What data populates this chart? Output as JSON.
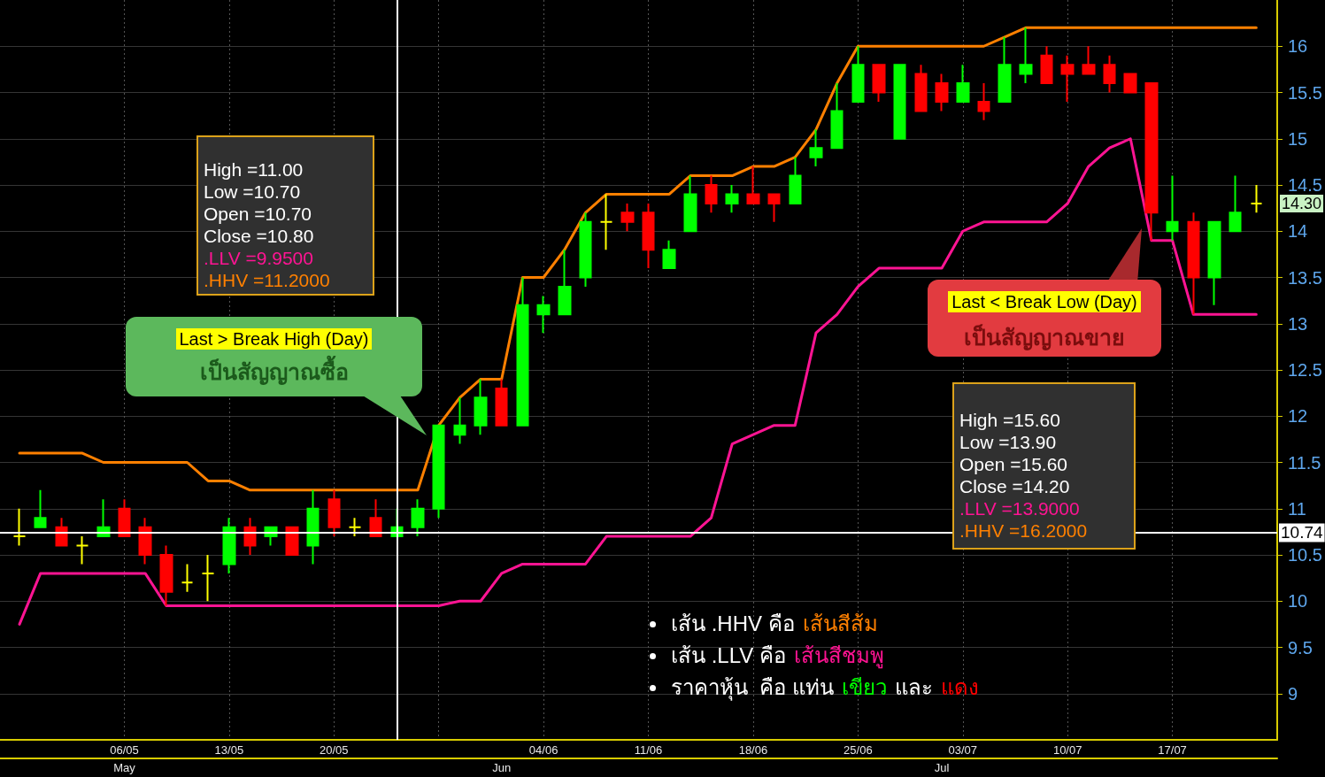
{
  "chart_data": {
    "type": "candlestick",
    "categories": [
      null,
      null,
      null,
      null,
      null,
      "06/05",
      null,
      null,
      null,
      null,
      "13/05",
      null,
      null,
      null,
      null,
      "20/05",
      null,
      null,
      null,
      null,
      null,
      null,
      null,
      null,
      null,
      "04/06",
      null,
      null,
      null,
      null,
      "11/06",
      null,
      null,
      null,
      null,
      "18/06",
      null,
      null,
      null,
      null,
      "25/06",
      null,
      null,
      null,
      null,
      "03/07",
      null,
      null,
      null,
      null,
      "10/07",
      null,
      null,
      null,
      null,
      "17/07",
      null,
      null,
      null,
      null
    ],
    "ylim": [
      8.5,
      16.5
    ],
    "yticks": [
      9,
      9.5,
      10,
      10.5,
      11,
      11.5,
      12,
      12.5,
      13,
      13.5,
      14,
      14.5,
      15,
      15.5,
      16
    ],
    "grid": true,
    "series": [
      {
        "ohlc": [
          [
            10.7,
            11.0,
            10.6,
            10.7
          ],
          [
            10.8,
            11.2,
            10.8,
            10.9
          ],
          [
            10.8,
            10.9,
            10.6,
            10.6
          ],
          [
            10.6,
            10.7,
            10.4,
            10.6
          ],
          [
            10.7,
            11.1,
            10.7,
            10.8
          ],
          [
            11.0,
            11.1,
            10.7,
            10.7
          ],
          [
            10.8,
            10.9,
            10.4,
            10.5
          ],
          [
            10.5,
            10.6,
            9.95,
            10.1
          ],
          [
            10.2,
            10.4,
            10.1,
            10.2
          ],
          [
            10.3,
            10.5,
            10.0,
            10.3
          ],
          [
            10.4,
            10.9,
            10.3,
            10.8
          ],
          [
            10.8,
            10.9,
            10.5,
            10.6
          ],
          [
            10.7,
            10.8,
            10.6,
            10.8
          ],
          [
            10.8,
            10.8,
            10.5,
            10.5
          ],
          [
            10.6,
            11.2,
            10.4,
            11.0
          ],
          [
            11.1,
            11.2,
            10.7,
            10.8
          ],
          [
            10.8,
            10.9,
            10.7,
            10.8
          ],
          [
            10.9,
            11.1,
            10.7,
            10.7
          ],
          [
            10.7,
            11.0,
            10.7,
            10.8
          ],
          [
            10.8,
            11.1,
            10.7,
            11.0
          ],
          [
            11.0,
            11.9,
            10.9,
            11.9
          ],
          [
            11.8,
            12.2,
            11.7,
            11.9
          ],
          [
            11.9,
            12.4,
            11.8,
            12.2
          ],
          [
            12.3,
            12.4,
            11.9,
            11.9
          ],
          [
            11.9,
            13.5,
            11.9,
            13.2
          ],
          [
            13.1,
            13.3,
            12.9,
            13.2
          ],
          [
            13.1,
            13.8,
            13.1,
            13.4
          ],
          [
            13.5,
            14.2,
            13.4,
            14.1
          ],
          [
            14.1,
            14.4,
            13.8,
            14.1
          ],
          [
            14.2,
            14.3,
            14.0,
            14.1
          ],
          [
            14.2,
            14.3,
            13.6,
            13.8
          ],
          [
            13.6,
            13.9,
            13.6,
            13.8
          ],
          [
            14.0,
            14.6,
            14.0,
            14.4
          ],
          [
            14.5,
            14.6,
            14.2,
            14.3
          ],
          [
            14.3,
            14.5,
            14.2,
            14.4
          ],
          [
            14.4,
            14.7,
            14.3,
            14.3
          ],
          [
            14.4,
            14.4,
            14.1,
            14.3
          ],
          [
            14.3,
            14.8,
            14.3,
            14.6
          ],
          [
            14.8,
            15.1,
            14.7,
            14.9
          ],
          [
            14.9,
            15.6,
            14.9,
            15.3
          ],
          [
            15.4,
            16.0,
            15.4,
            15.8
          ],
          [
            15.8,
            15.8,
            15.4,
            15.5
          ],
          [
            15.0,
            15.8,
            15.0,
            15.8
          ],
          [
            15.7,
            15.8,
            15.3,
            15.3
          ],
          [
            15.6,
            15.7,
            15.3,
            15.4
          ],
          [
            15.4,
            15.8,
            15.4,
            15.6
          ],
          [
            15.4,
            15.6,
            15.2,
            15.3
          ],
          [
            15.4,
            16.1,
            15.4,
            15.8
          ],
          [
            15.7,
            16.2,
            15.6,
            15.8
          ],
          [
            15.9,
            16.0,
            15.6,
            15.6
          ],
          [
            15.8,
            15.9,
            15.4,
            15.7
          ],
          [
            15.8,
            16.0,
            15.7,
            15.7
          ],
          [
            15.8,
            15.9,
            15.5,
            15.6
          ],
          [
            15.7,
            15.7,
            15.5,
            15.5
          ],
          [
            15.6,
            15.6,
            13.9,
            14.2
          ],
          [
            14.0,
            14.6,
            13.9,
            14.1
          ],
          [
            14.1,
            14.2,
            13.1,
            13.5
          ],
          [
            13.5,
            14.1,
            13.2,
            14.1
          ],
          [
            14.0,
            14.6,
            14.0,
            14.2
          ],
          [
            14.3,
            14.5,
            14.2,
            14.3
          ]
        ],
        "colors": [
          "#ffff00",
          "#00ff00",
          "#ff0000",
          "#ffff00",
          "#00ff00",
          "#ff0000",
          "#ff0000",
          "#ff0000",
          "#ffff00",
          "#ffff00",
          "#00ff00",
          "#ff0000",
          "#00ff00",
          "#ff0000",
          "#00ff00",
          "#ff0000",
          "#ffff00",
          "#ff0000",
          "#00ff00",
          "#00ff00",
          "#00ff00",
          "#00ff00",
          "#00ff00",
          "#ff0000",
          "#00ff00",
          "#00ff00",
          "#00ff00",
          "#00ff00",
          "#ffff00",
          "#ff0000",
          "#ff0000",
          "#00ff00",
          "#00ff00",
          "#ff0000",
          "#00ff00",
          "#ff0000",
          "#ff0000",
          "#00ff00",
          "#00ff00",
          "#00ff00",
          "#00ff00",
          "#ff0000",
          "#00ff00",
          "#ff0000",
          "#ff0000",
          "#00ff00",
          "#ff0000",
          "#00ff00",
          "#00ff00",
          "#ff0000",
          "#ff0000",
          "#ff0000",
          "#ff0000",
          "#ff0000",
          "#ff0000",
          "#00ff00",
          "#ff0000",
          "#00ff00",
          "#00ff00",
          "#ffff00"
        ]
      },
      {
        "type": "line",
        "color": "#ff8000",
        "values": [
          11.6,
          11.6,
          11.6,
          11.6,
          11.5,
          11.5,
          11.5,
          11.5,
          11.5,
          11.3,
          11.3,
          11.2,
          11.2,
          11.2,
          11.2,
          11.2,
          11.2,
          11.2,
          11.2,
          11.2,
          11.9,
          12.2,
          12.4,
          12.4,
          13.5,
          13.5,
          13.8,
          14.2,
          14.4,
          14.4,
          14.4,
          14.4,
          14.6,
          14.6,
          14.6,
          14.7,
          14.7,
          14.8,
          15.1,
          15.6,
          16.0,
          16.0,
          16.0,
          16.0,
          16.0,
          16.0,
          16.0,
          16.1,
          16.2,
          16.2,
          16.2,
          16.2,
          16.2,
          16.2,
          16.2,
          16.2,
          16.2,
          16.2,
          16.2,
          16.2
        ]
      },
      {
        "type": "line",
        "color": "#ff1493",
        "values": [
          9.75,
          10.3,
          10.3,
          10.3,
          10.3,
          10.3,
          10.3,
          9.95,
          9.95,
          9.95,
          9.95,
          9.95,
          9.95,
          9.95,
          9.95,
          9.95,
          9.95,
          9.95,
          9.95,
          9.95,
          9.95,
          10.0,
          10.0,
          10.3,
          10.4,
          10.4,
          10.4,
          10.4,
          10.7,
          10.7,
          10.7,
          10.7,
          10.7,
          10.9,
          11.7,
          11.8,
          11.9,
          11.9,
          12.9,
          13.1,
          13.4,
          13.6,
          13.6,
          13.6,
          13.6,
          14.0,
          14.1,
          14.1,
          14.1,
          14.1,
          14.3,
          14.7,
          14.9,
          15.0,
          13.9,
          13.9,
          13.1,
          13.1,
          13.1,
          13.1
        ]
      }
    ],
    "ref_lines": [
      {
        "axis": "y",
        "value": 10.74,
        "label": "10.74",
        "color": "#ffffff"
      }
    ],
    "annotations": [
      "High =11.00",
      "Low =10.70",
      "Open =10.70",
      "Close =10.80",
      ".LLV =9.9500",
      ".HHV =11.2000",
      "Last > Break High (Day)",
      "เป็นสัญญาณซื้อ",
      "Last < Break Low (Day)",
      "เป็นสัญญาณขาย",
      "High =15.60",
      "Low =13.90",
      "Open =15.60",
      "Close =14.20",
      ".LLV =13.9000",
      ".HHV =16.2000",
      "เส้น .HHV คือ",
      "เส้นสีส้ม",
      "เส้น .LLV คือ",
      "เส้นสีชมพู",
      "ราคาหุ้น  คือ แท่น",
      "เขียว",
      "และ",
      "แดง",
      "14.30",
      "May",
      "Jun",
      "Jul"
    ]
  }
}
